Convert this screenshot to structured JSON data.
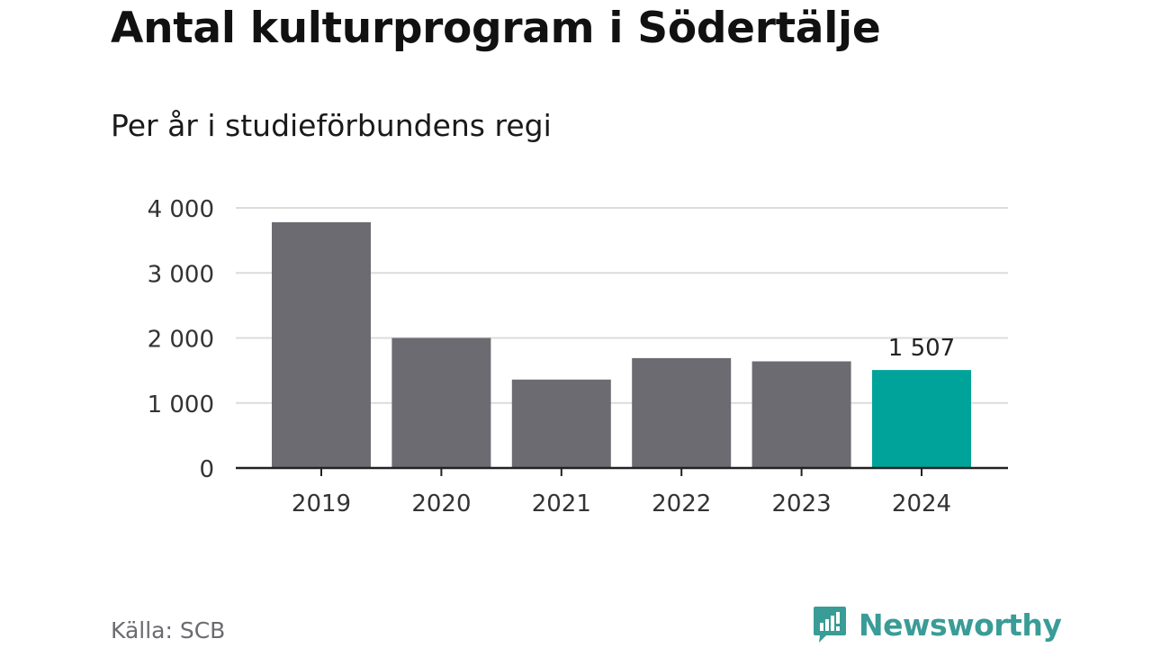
{
  "title": "Antal kulturprogram i Södertälje",
  "subtitle": "Per år i studieförbundens regi",
  "source": "Källa: SCB",
  "brand": {
    "name": "Newsworthy",
    "icon": "newsworthy-logo-icon",
    "color": "#3a9c96"
  },
  "chart_data": {
    "type": "bar",
    "categories": [
      "2019",
      "2020",
      "2021",
      "2022",
      "2023",
      "2024"
    ],
    "values": [
      3780,
      2000,
      1360,
      1690,
      1640,
      1507
    ],
    "ylim": [
      0,
      4000
    ],
    "yticks": [
      0,
      1000,
      2000,
      3000,
      4000
    ],
    "ytick_labels": [
      "0",
      "1 000",
      "2 000",
      "3 000",
      "4 000"
    ],
    "grid": true,
    "bar_color": "#6c6b72",
    "highlight_color": "#00a39a",
    "highlight_index": 5,
    "data_labels": [
      {
        "index": 5,
        "text": "1 507"
      }
    ]
  }
}
